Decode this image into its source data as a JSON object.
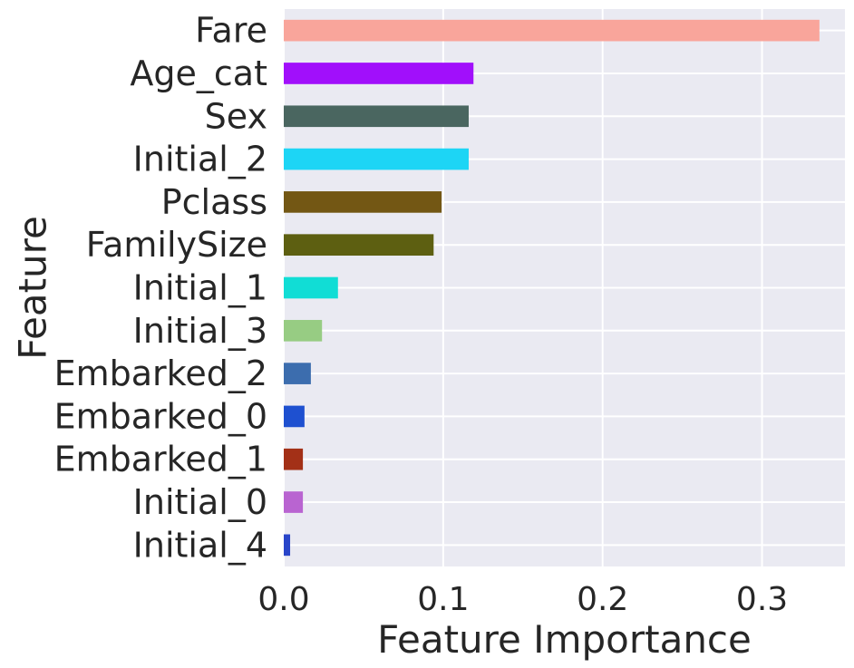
{
  "chart_data": {
    "type": "bar",
    "orientation": "horizontal",
    "xlabel": "Feature Importance",
    "ylabel": "Feature",
    "xlim": [
      0,
      0.352
    ],
    "xticks": [
      0.0,
      0.1,
      0.2,
      0.3
    ],
    "xtick_labels": [
      "0.0",
      "0.1",
      "0.2",
      "0.3"
    ],
    "grid": true,
    "background_color": "#eaeaf2",
    "grid_color": "#ffffff",
    "bars": [
      {
        "category": "Fare",
        "value": 0.336,
        "color": "#f9a59b"
      },
      {
        "category": "Age_cat",
        "value": 0.119,
        "color": "#a10ffb"
      },
      {
        "category": "Sex",
        "value": 0.116,
        "color": "#4a6660"
      },
      {
        "category": "Initial_2",
        "value": 0.116,
        "color": "#1dd5f5"
      },
      {
        "category": "Pclass",
        "value": 0.099,
        "color": "#735714"
      },
      {
        "category": "FamilySize",
        "value": 0.094,
        "color": "#5d5f11"
      },
      {
        "category": "Initial_1",
        "value": 0.034,
        "color": "#11ddd5"
      },
      {
        "category": "Initial_3",
        "value": 0.024,
        "color": "#97cc83"
      },
      {
        "category": "Embarked_2",
        "value": 0.017,
        "color": "#3c6dae"
      },
      {
        "category": "Embarked_0",
        "value": 0.013,
        "color": "#1e50d0"
      },
      {
        "category": "Embarked_1",
        "value": 0.012,
        "color": "#a33017"
      },
      {
        "category": "Initial_0",
        "value": 0.012,
        "color": "#b964d1"
      },
      {
        "category": "Initial_4",
        "value": 0.004,
        "color": "#2945c9"
      }
    ]
  }
}
